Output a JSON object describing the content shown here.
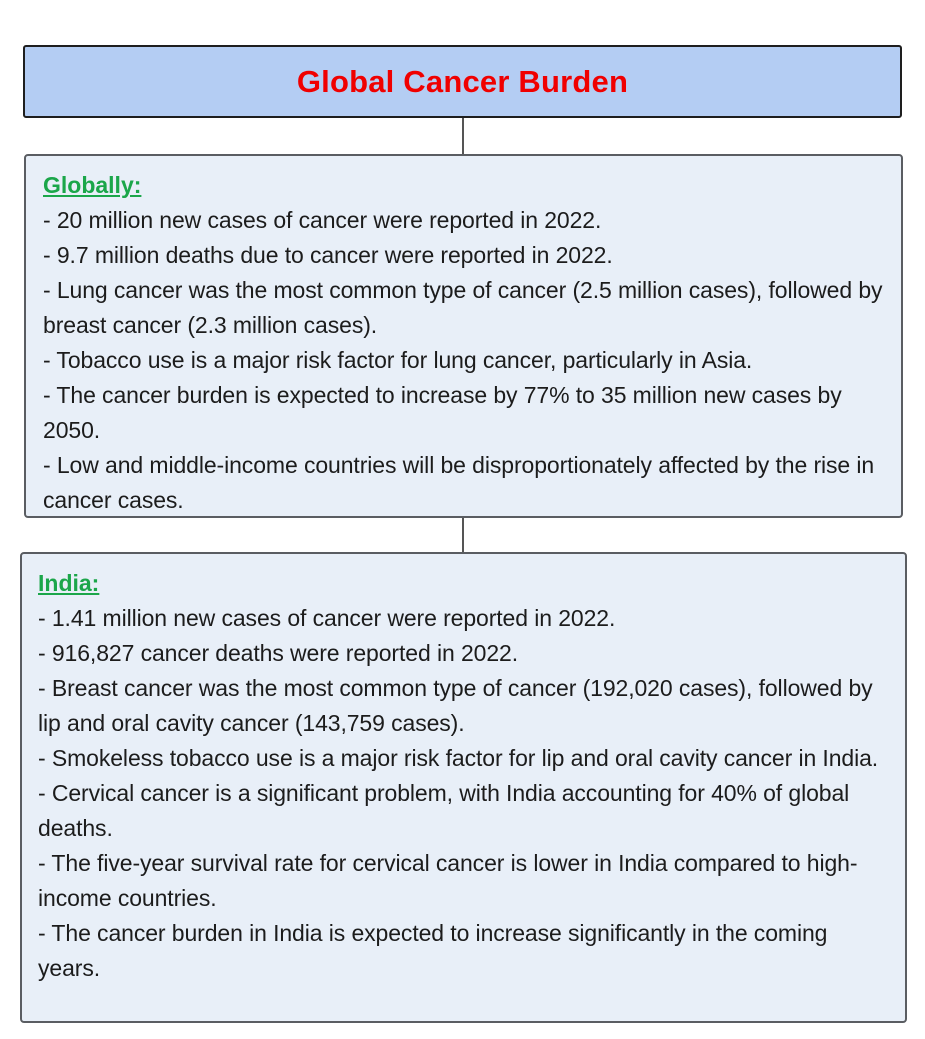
{
  "title": "Global Cancer Burden",
  "colors": {
    "title_text": "#f00000",
    "title_background": "#b4cdf3",
    "section_background": "#e8eff8",
    "heading_text": "#1ba64a"
  },
  "sections": [
    {
      "heading": "Globally:",
      "items": [
        "- 20 million new cases of cancer were reported in 2022.",
        "- 9.7 million deaths due to cancer were reported in 2022.",
        "- Lung cancer was the most common type of cancer (2.5 million cases), followed by breast cancer (2.3 million cases).",
        "- Tobacco use is a major risk factor for lung cancer, particularly in Asia.",
        "- The cancer burden is expected to increase by 77% to 35 million new cases by 2050.",
        "- Low and middle-income countries will be disproportionately affected by the rise in cancer cases."
      ]
    },
    {
      "heading": "India:",
      "items": [
        "- 1.41 million new cases of cancer were reported in 2022.",
        "- 916,827 cancer deaths were reported in 2022.",
        "- Breast cancer was the most common type of cancer (192,020 cases), followed by lip and oral cavity cancer (143,759 cases).",
        "- Smokeless tobacco use is a major risk factor for lip and oral cavity cancer in India.",
        "- Cervical cancer is a significant problem, with India accounting for 40% of global deaths.",
        "- The five-year survival rate for cervical cancer is lower in India compared to high-income countries.",
        "- The cancer burden in India is expected to increase significantly in the coming years."
      ]
    }
  ]
}
